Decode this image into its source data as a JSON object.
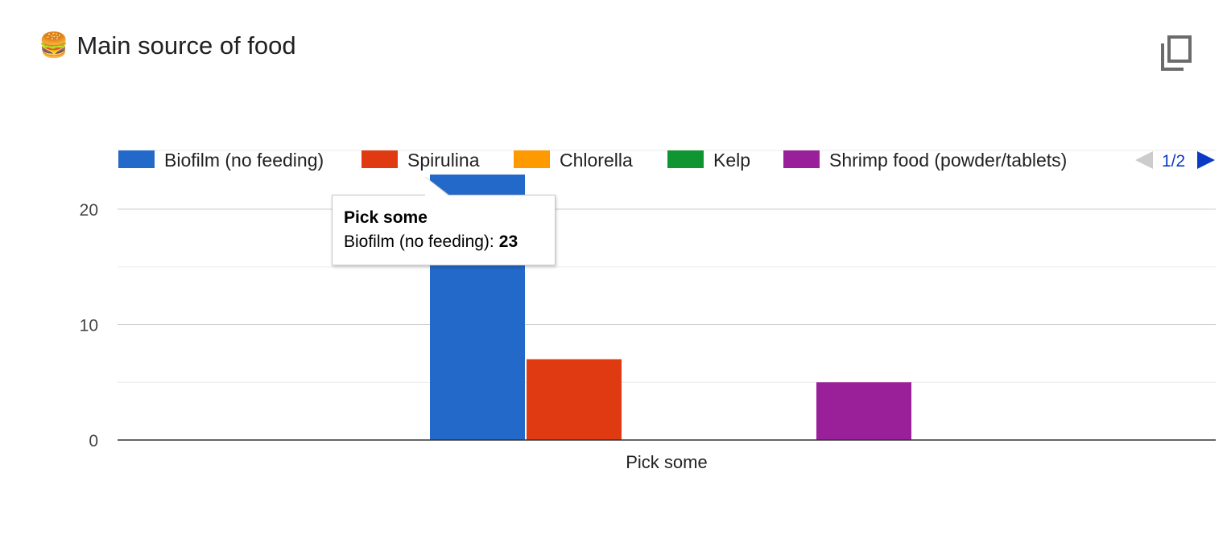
{
  "header": {
    "emoji": "🍔",
    "title": "Main source of food",
    "copy_icon": "copy-icon"
  },
  "legend": {
    "page_label": "1/2",
    "prev_icon": "triangle-left-icon",
    "next_icon": "triangle-right-icon"
  },
  "tooltip": {
    "title": "Pick some",
    "series": "Biofilm (no feeding):",
    "value": "23"
  },
  "chart_data": {
    "type": "bar",
    "categories": [
      "Pick some"
    ],
    "series": [
      {
        "name": "Biofilm (no feeding)",
        "values": [
          23
        ],
        "color": "#2369c9"
      },
      {
        "name": "Spirulina",
        "values": [
          7
        ],
        "color": "#e03a12"
      },
      {
        "name": "Chlorella",
        "values": [
          0
        ],
        "color": "#ff9900"
      },
      {
        "name": "Kelp",
        "values": [
          0
        ],
        "color": "#0f9633"
      },
      {
        "name": "Shrimp food (powder/tablets)",
        "values": [
          5
        ],
        "color": "#9a209a"
      }
    ],
    "ylim": [
      0,
      23
    ],
    "yticks": [
      "0",
      "10",
      "20"
    ],
    "grid": true,
    "legend_position": "top"
  }
}
